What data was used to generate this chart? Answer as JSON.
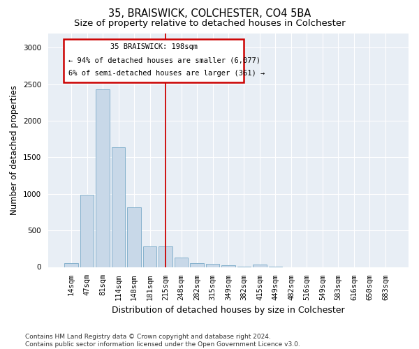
{
  "title": "35, BRAISWICK, COLCHESTER, CO4 5BA",
  "subtitle": "Size of property relative to detached houses in Colchester",
  "xlabel": "Distribution of detached houses by size in Colchester",
  "ylabel": "Number of detached properties",
  "bar_labels": [
    "14sqm",
    "47sqm",
    "81sqm",
    "114sqm",
    "148sqm",
    "181sqm",
    "215sqm",
    "248sqm",
    "282sqm",
    "315sqm",
    "349sqm",
    "382sqm",
    "415sqm",
    "449sqm",
    "482sqm",
    "516sqm",
    "549sqm",
    "583sqm",
    "616sqm",
    "650sqm",
    "683sqm"
  ],
  "bar_values": [
    55,
    985,
    2430,
    1640,
    820,
    285,
    280,
    130,
    55,
    40,
    25,
    5,
    30,
    5,
    0,
    0,
    0,
    0,
    0,
    0,
    0
  ],
  "bar_color": "#c8d8e8",
  "bar_edge_color": "#7aaac8",
  "vline_x": 6.0,
  "vline_color": "#cc0000",
  "annotation_line1": "35 BRAISWICK: 198sqm",
  "annotation_line2": "← 94% of detached houses are smaller (6,077)",
  "annotation_line3": "6% of semi-detached houses are larger (361) →",
  "annotation_box_color": "#cc0000",
  "annotation_bg": "#ffffff",
  "ylim": [
    0,
    3200
  ],
  "yticks": [
    0,
    500,
    1000,
    1500,
    2000,
    2500,
    3000
  ],
  "footer_text": "Contains HM Land Registry data © Crown copyright and database right 2024.\nContains public sector information licensed under the Open Government Licence v3.0.",
  "plot_bg_color": "#e8eef5",
  "title_fontsize": 10.5,
  "subtitle_fontsize": 9.5,
  "ylabel_fontsize": 8.5,
  "xlabel_fontsize": 9,
  "tick_fontsize": 7.5,
  "footer_fontsize": 6.5,
  "ann_fontsize": 7.5
}
